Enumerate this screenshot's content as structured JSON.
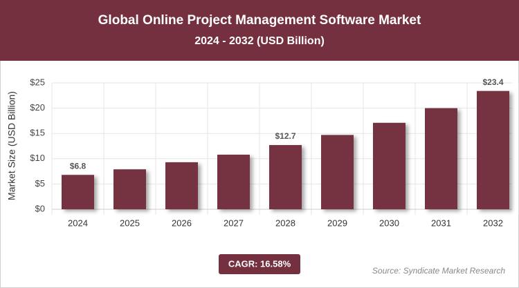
{
  "chart_data": {
    "type": "bar",
    "title": "Global Online Project Management Software Market",
    "subtitle": "2024 - 2032 (USD Billion)",
    "y_axis_label": "Market Size (USD Billion)",
    "categories": [
      "2024",
      "2025",
      "2026",
      "2027",
      "2028",
      "2029",
      "2030",
      "2031",
      "2032"
    ],
    "values": [
      6.8,
      7.9,
      9.3,
      10.8,
      12.7,
      14.7,
      17.1,
      20.0,
      23.4
    ],
    "value_labels": [
      "$6.8",
      null,
      null,
      null,
      "$12.7",
      null,
      null,
      null,
      "$23.4"
    ],
    "color": "#75303f",
    "ylim": [
      0,
      25
    ],
    "yticks": [
      {
        "value": 0,
        "label": "$0"
      },
      {
        "value": 5,
        "label": "$5"
      },
      {
        "value": 10,
        "label": "$10"
      },
      {
        "value": 15,
        "label": "$15"
      },
      {
        "value": 20,
        "label": "$20"
      },
      {
        "value": 25,
        "label": "$25"
      }
    ],
    "grid": true,
    "cagr": "CAGR: 16.58%",
    "source": "Source: Syndicate Market Research"
  }
}
